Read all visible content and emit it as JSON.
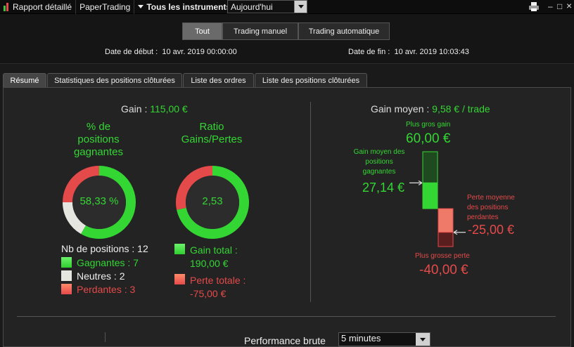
{
  "toolbar": {
    "report_label": "Rapport détaillé",
    "papertrading_label": "PaperTrading",
    "instruments_label": "Tous les instruments",
    "period_value": "Aujourd'hui",
    "print_icon": "printer-icon",
    "minimize_glyph": "–",
    "maximize_glyph": "□",
    "close_glyph": "×"
  },
  "filter": {
    "options": [
      "Tout",
      "Trading manuel",
      "Trading automatique"
    ],
    "selected": "Tout"
  },
  "dates": {
    "start_label": "Date de début :",
    "start_value": "10 avr. 2019 00:00:00",
    "end_label": "Date de fin :",
    "end_value": "10 avr. 2019 10:03:43"
  },
  "tabs": [
    "Résumé",
    "Statistiques des positions clôturées",
    "Liste des ordres",
    "Liste des positions clôturées"
  ],
  "summary": {
    "gain_label": "Gain :",
    "gain_value": "115,00 €",
    "pct_title_1": "% de",
    "pct_title_2": "positions",
    "pct_title_3": "gagnantes",
    "pct_value": "58,33 %",
    "ratio_title_1": "Ratio",
    "ratio_title_2": "Gains/Pertes",
    "ratio_value": "2,53",
    "positions_label": "Nb de positions : 12",
    "winners_label": "Gagnantes : 7",
    "neutral_label": "Neutres : 2",
    "losers_label": "Perdantes : 3",
    "gain_total_label": "Gain total :",
    "gain_total_value": "190,00 €",
    "loss_total_label": "Perte totale :",
    "loss_total_value": "-75,00 €",
    "counts": {
      "winners": 7,
      "neutral": 2,
      "losers": 3
    },
    "totals": {
      "gain": 190,
      "loss": 75
    }
  },
  "gain_moyen": {
    "title_label": "Gain moyen :",
    "title_value": "9,58 € / trade",
    "max_gain_label": "Plus gros gain",
    "max_gain_value": "60,00 €",
    "avg_gain_label_1": "Gain moyen des",
    "avg_gain_label_2": "positions",
    "avg_gain_label_3": "gagnantes",
    "avg_gain_value": "27,14 €",
    "avg_loss_label_1": "Perte moyenne",
    "avg_loss_label_2": "des positions",
    "avg_loss_label_3": "perdantes",
    "avg_loss_value": "-25,00 €",
    "max_loss_label": "Plus grosse perte",
    "max_loss_value": "-40,00 €",
    "values": {
      "max_gain": 60,
      "avg_gain": 27.14,
      "avg_loss": -25,
      "max_loss": -40
    }
  },
  "bottom": {
    "performance_label": "Performance brute",
    "interval_value": "5 minutes"
  },
  "colors": {
    "green": "#34d634",
    "red": "#e54a4a",
    "neutral": "#e6e6e0"
  }
}
